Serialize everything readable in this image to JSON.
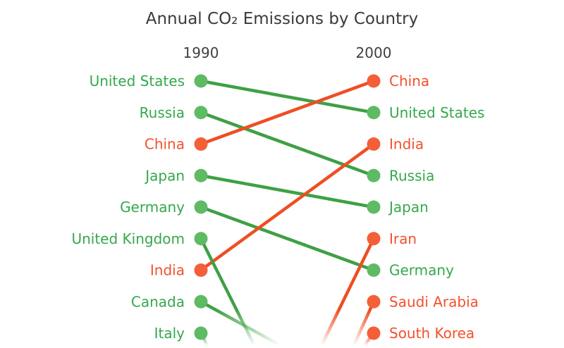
{
  "colors": {
    "background": "#ffffff",
    "title_text": "#3a3a3a",
    "axis_text": "#3f3f3f",
    "green_text": "#35a84b",
    "green_dot": "#5fba64",
    "green_line": "#3fa045",
    "orange_text": "#f4502a",
    "orange_dot": "#f45f38",
    "orange_line": "#ee4e23"
  },
  "chart_data": {
    "type": "slope",
    "title": "Annual CO₂ Emissions by Country",
    "subtitle": "",
    "columns": [
      "1990",
      "2000"
    ],
    "grid": false,
    "legend": false,
    "left_column": [
      {
        "rank": 1,
        "label": "United States",
        "color": "green"
      },
      {
        "rank": 2,
        "label": "Russia",
        "color": "green"
      },
      {
        "rank": 3,
        "label": "China",
        "color": "orange"
      },
      {
        "rank": 4,
        "label": "Japan",
        "color": "green"
      },
      {
        "rank": 5,
        "label": "Germany",
        "color": "green"
      },
      {
        "rank": 6,
        "label": "United Kingdom",
        "color": "green"
      },
      {
        "rank": 7,
        "label": "India",
        "color": "orange"
      },
      {
        "rank": 8,
        "label": "Canada",
        "color": "green"
      },
      {
        "rank": 9,
        "label": "Italy",
        "color": "green"
      }
    ],
    "right_column": [
      {
        "rank": 1,
        "label": "China",
        "color": "orange"
      },
      {
        "rank": 2,
        "label": "United States",
        "color": "green"
      },
      {
        "rank": 3,
        "label": "India",
        "color": "orange"
      },
      {
        "rank": 4,
        "label": "Russia",
        "color": "green"
      },
      {
        "rank": 5,
        "label": "Japan",
        "color": "green"
      },
      {
        "rank": 6,
        "label": "Iran",
        "color": "orange"
      },
      {
        "rank": 7,
        "label": "Germany",
        "color": "green"
      },
      {
        "rank": 8,
        "label": "Saudi Arabia",
        "color": "orange"
      },
      {
        "rank": 9,
        "label": "South Korea",
        "color": "orange"
      }
    ],
    "links": [
      {
        "from": "United States",
        "to": "United States",
        "color": "green"
      },
      {
        "from": "Russia",
        "to": "Russia",
        "color": "green"
      },
      {
        "from": "China",
        "to": "China",
        "color": "orange"
      },
      {
        "from": "Japan",
        "to": "Japan",
        "color": "green"
      },
      {
        "from": "Germany",
        "to": "Germany",
        "color": "green"
      },
      {
        "from": "India",
        "to": "India",
        "color": "orange"
      },
      {
        "from": "United Kingdom",
        "to": null,
        "color": "green",
        "slope": 2.0,
        "fades_out_bottom": true
      },
      {
        "from": "Canada",
        "to": null,
        "color": "green",
        "slope": 0.55,
        "fades_out_bottom": true
      },
      {
        "from": "Italy",
        "to": null,
        "color": "green",
        "slope": 1.9,
        "fades_out_bottom": true
      },
      {
        "from": null,
        "to": "Iran",
        "color": "orange",
        "slope": 2.05,
        "fades_out_bottom": true
      },
      {
        "from": null,
        "to": "Saudi Arabia",
        "color": "orange",
        "slope": 2.2,
        "fades_out_bottom": true
      },
      {
        "from": null,
        "to": "South Korea",
        "color": "orange",
        "slope": 1.3,
        "fades_out_bottom": true
      }
    ]
  }
}
